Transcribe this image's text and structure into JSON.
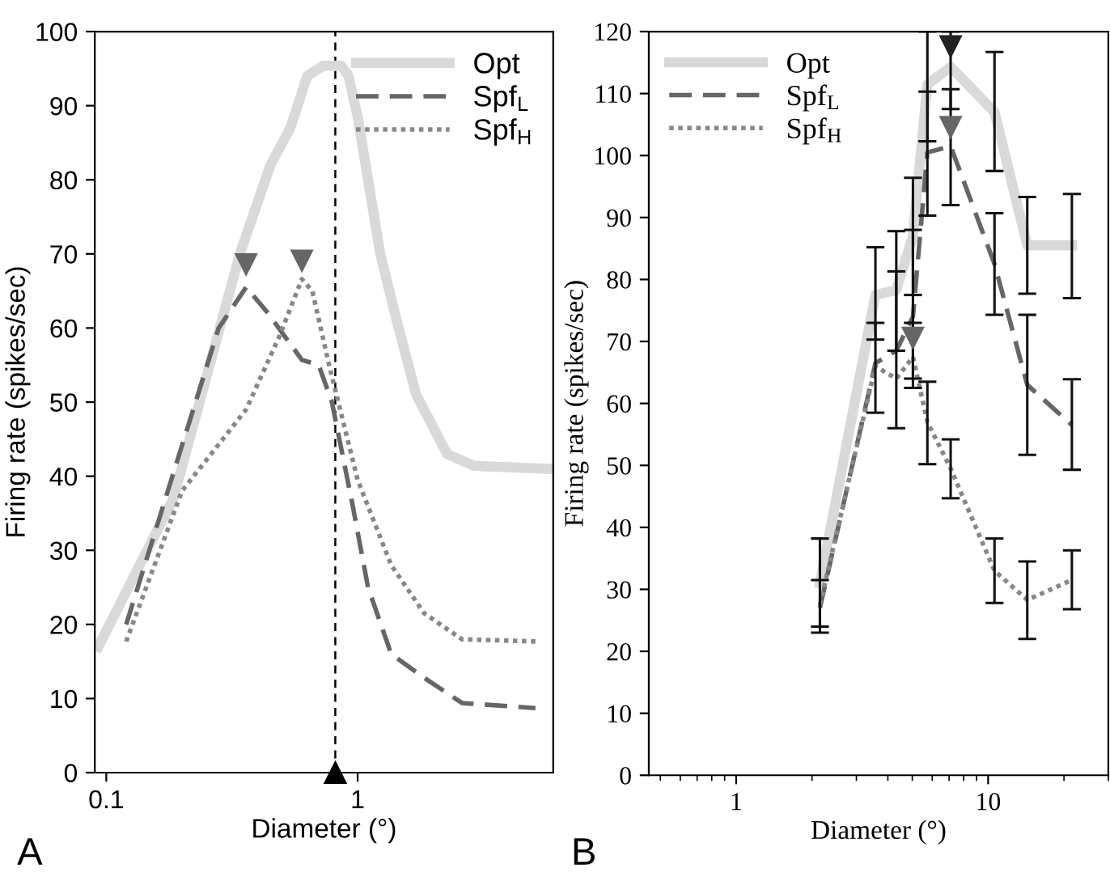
{
  "chart_data": [
    {
      "type": "line",
      "xlabel": "Diameter (°)",
      "ylabel": "Firing rate (spikes/sec)",
      "log": "x",
      "xlim": [
        0.09,
        6
      ],
      "ylim": [
        0,
        100
      ],
      "xticks": [
        0.1,
        1
      ],
      "yticks": [
        0,
        10,
        20,
        30,
        40,
        50,
        60,
        70,
        80,
        90,
        100
      ],
      "legend": "top right",
      "grid": false,
      "annotations": [
        "A"
      ],
      "ref_lines": [
        {
          "axis": "x",
          "value": 0.815,
          "color": "#000000",
          "line_style": "dashed"
        }
      ],
      "series": [
        {
          "name": "Opt",
          "color": "#d9d9d9",
          "line_style": "solid",
          "x": [
            0.093,
            0.185,
            0.34,
            0.45,
            0.54,
            0.63,
            0.73,
            0.86,
            0.92,
            1.0,
            1.1,
            1.23,
            1.43,
            1.71,
            2.27,
            2.9,
            5.7
          ],
          "values": [
            17,
            37,
            70,
            82,
            87,
            94,
            95.4,
            95.4,
            94,
            88.5,
            80,
            70,
            61,
            51,
            43,
            41.4,
            41
          ]
        },
        {
          "name": "Spf$_{L}$",
          "color": "#666666",
          "line_style": "dashed",
          "x": [
            0.12,
            0.28,
            0.36,
            0.44,
            0.6,
            0.7,
            0.79,
            0.95,
            1.1,
            1.36,
            1.84,
            2.6,
            5.1
          ],
          "values": [
            20,
            60,
            65.5,
            62,
            55.7,
            55,
            50,
            36.5,
            25,
            16,
            12.8,
            9.4,
            8.7
          ]
        },
        {
          "name": "Spf$_{H}$",
          "color": "#888888",
          "line_style": "dotted",
          "x": [
            0.12,
            0.2,
            0.36,
            0.49,
            0.6,
            0.66,
            0.77,
            1.0,
            1.36,
            1.84,
            2.6,
            5.1
          ],
          "values": [
            17.7,
            38,
            49,
            59,
            66.6,
            65,
            55,
            39.5,
            28,
            21.5,
            18,
            17.7
          ]
        },
        {
          "type": "scatter",
          "marker": "triangle",
          "color": "#666666",
          "x": [
            0.36,
            0.6
          ],
          "values": [
            68.5,
            69
          ]
        }
      ]
    },
    {
      "type": "line",
      "xlabel": "Diameter (°)",
      "ylabel": "Firing rate (spikes/sec)",
      "log": "x",
      "xlim": [
        0.45,
        30
      ],
      "ylim": [
        0,
        120
      ],
      "xticks": [
        {
          "value": 0.5,
          "label": null
        },
        {
          "value": 0.6,
          "label": null
        },
        {
          "value": 0.7,
          "label": null
        },
        {
          "value": 0.8,
          "label": null
        },
        {
          "value": 0.9,
          "label": null
        },
        1,
        {
          "value": 2,
          "label": null
        },
        {
          "value": 3,
          "label": null
        },
        {
          "value": 4,
          "label": null
        },
        {
          "value": 5,
          "label": null
        },
        {
          "value": 6,
          "label": null
        },
        {
          "value": 7,
          "label": null
        },
        {
          "value": 8,
          "label": null
        },
        {
          "value": 9,
          "label": null
        },
        10,
        {
          "value": 20,
          "label": null
        },
        {
          "value": 30,
          "label": null
        }
      ],
      "yticks": [
        0,
        10,
        20,
        30,
        40,
        50,
        60,
        70,
        80,
        90,
        100,
        110,
        120
      ],
      "legend": "top left",
      "grid": false,
      "annotations": [
        "B"
      ],
      "series": [
        {
          "name": "Opt",
          "color": "#d9d9d9",
          "line_style": "solid",
          "x": [
            2.15,
            3.57,
            4.32,
            5.03,
            5.74,
            7.1,
            10.6,
            14.3,
            21.5
          ],
          "values": [
            31,
            77.5,
            78.3,
            87,
            111.5,
            114.3,
            107,
            85.5,
            85.5
          ],
          "errors": [
            [
              24,
              38.2
            ],
            [
              70.3,
              85.2
            ],
            [
              68.5,
              87.8
            ],
            [
              77.5,
              96.4
            ],
            [
              102.3,
              120
            ],
            [
              107.5,
              120
            ],
            [
              97.5,
              116.7
            ],
            [
              77.7,
              93.3
            ],
            [
              77,
              93.8
            ]
          ]
        },
        {
          "name": "Spf$_{L}$",
          "color": "#666666",
          "line_style": "dashed",
          "x": [
            2.15,
            3.57,
            4.32,
            5.03,
            5.74,
            7.1,
            10.6,
            14.3,
            21.5
          ],
          "values": [
            27,
            66.5,
            68.5,
            74,
            100.5,
            101.5,
            82.5,
            63,
            56.5
          ],
          "errors": [
            [
              23,
              31.5
            ],
            [
              58.5,
              73
            ],
            [
              56,
              81.3
            ],
            [
              62.5,
              88
            ],
            [
              90.3,
              110.3
            ],
            [
              92,
              110.7
            ],
            [
              74.3,
              90.7
            ],
            [
              51.7,
              74.3
            ],
            [
              49.3,
              63.9
            ]
          ]
        },
        {
          "name": "Spf$_{H}$",
          "color": "#888888",
          "line_style": "dotted",
          "x": [
            2.15,
            3.57,
            4.32,
            5.03,
            5.74,
            7.1,
            10.6,
            14.3,
            21.5
          ],
          "values": [
            27.5,
            66,
            64,
            67.5,
            57,
            49.5,
            33,
            28.3,
            31.5
          ],
          "errors": [
            null,
            null,
            null,
            [
              64,
              73
            ],
            [
              50.2,
              63.5
            ],
            [
              44.7,
              54.2
            ],
            [
              27.8,
              38.2
            ],
            [
              22,
              34.5
            ],
            [
              26.8,
              36.3
            ]
          ]
        },
        {
          "type": "scatter",
          "marker": "triangle",
          "color": "#222222",
          "x": [
            7.1
          ],
          "values": [
            117.5
          ]
        },
        {
          "type": "scatter",
          "marker": "triangle",
          "color": "#666666",
          "x": [
            5.03,
            7.1
          ],
          "values": [
            70.5,
            104.5
          ]
        }
      ]
    }
  ]
}
